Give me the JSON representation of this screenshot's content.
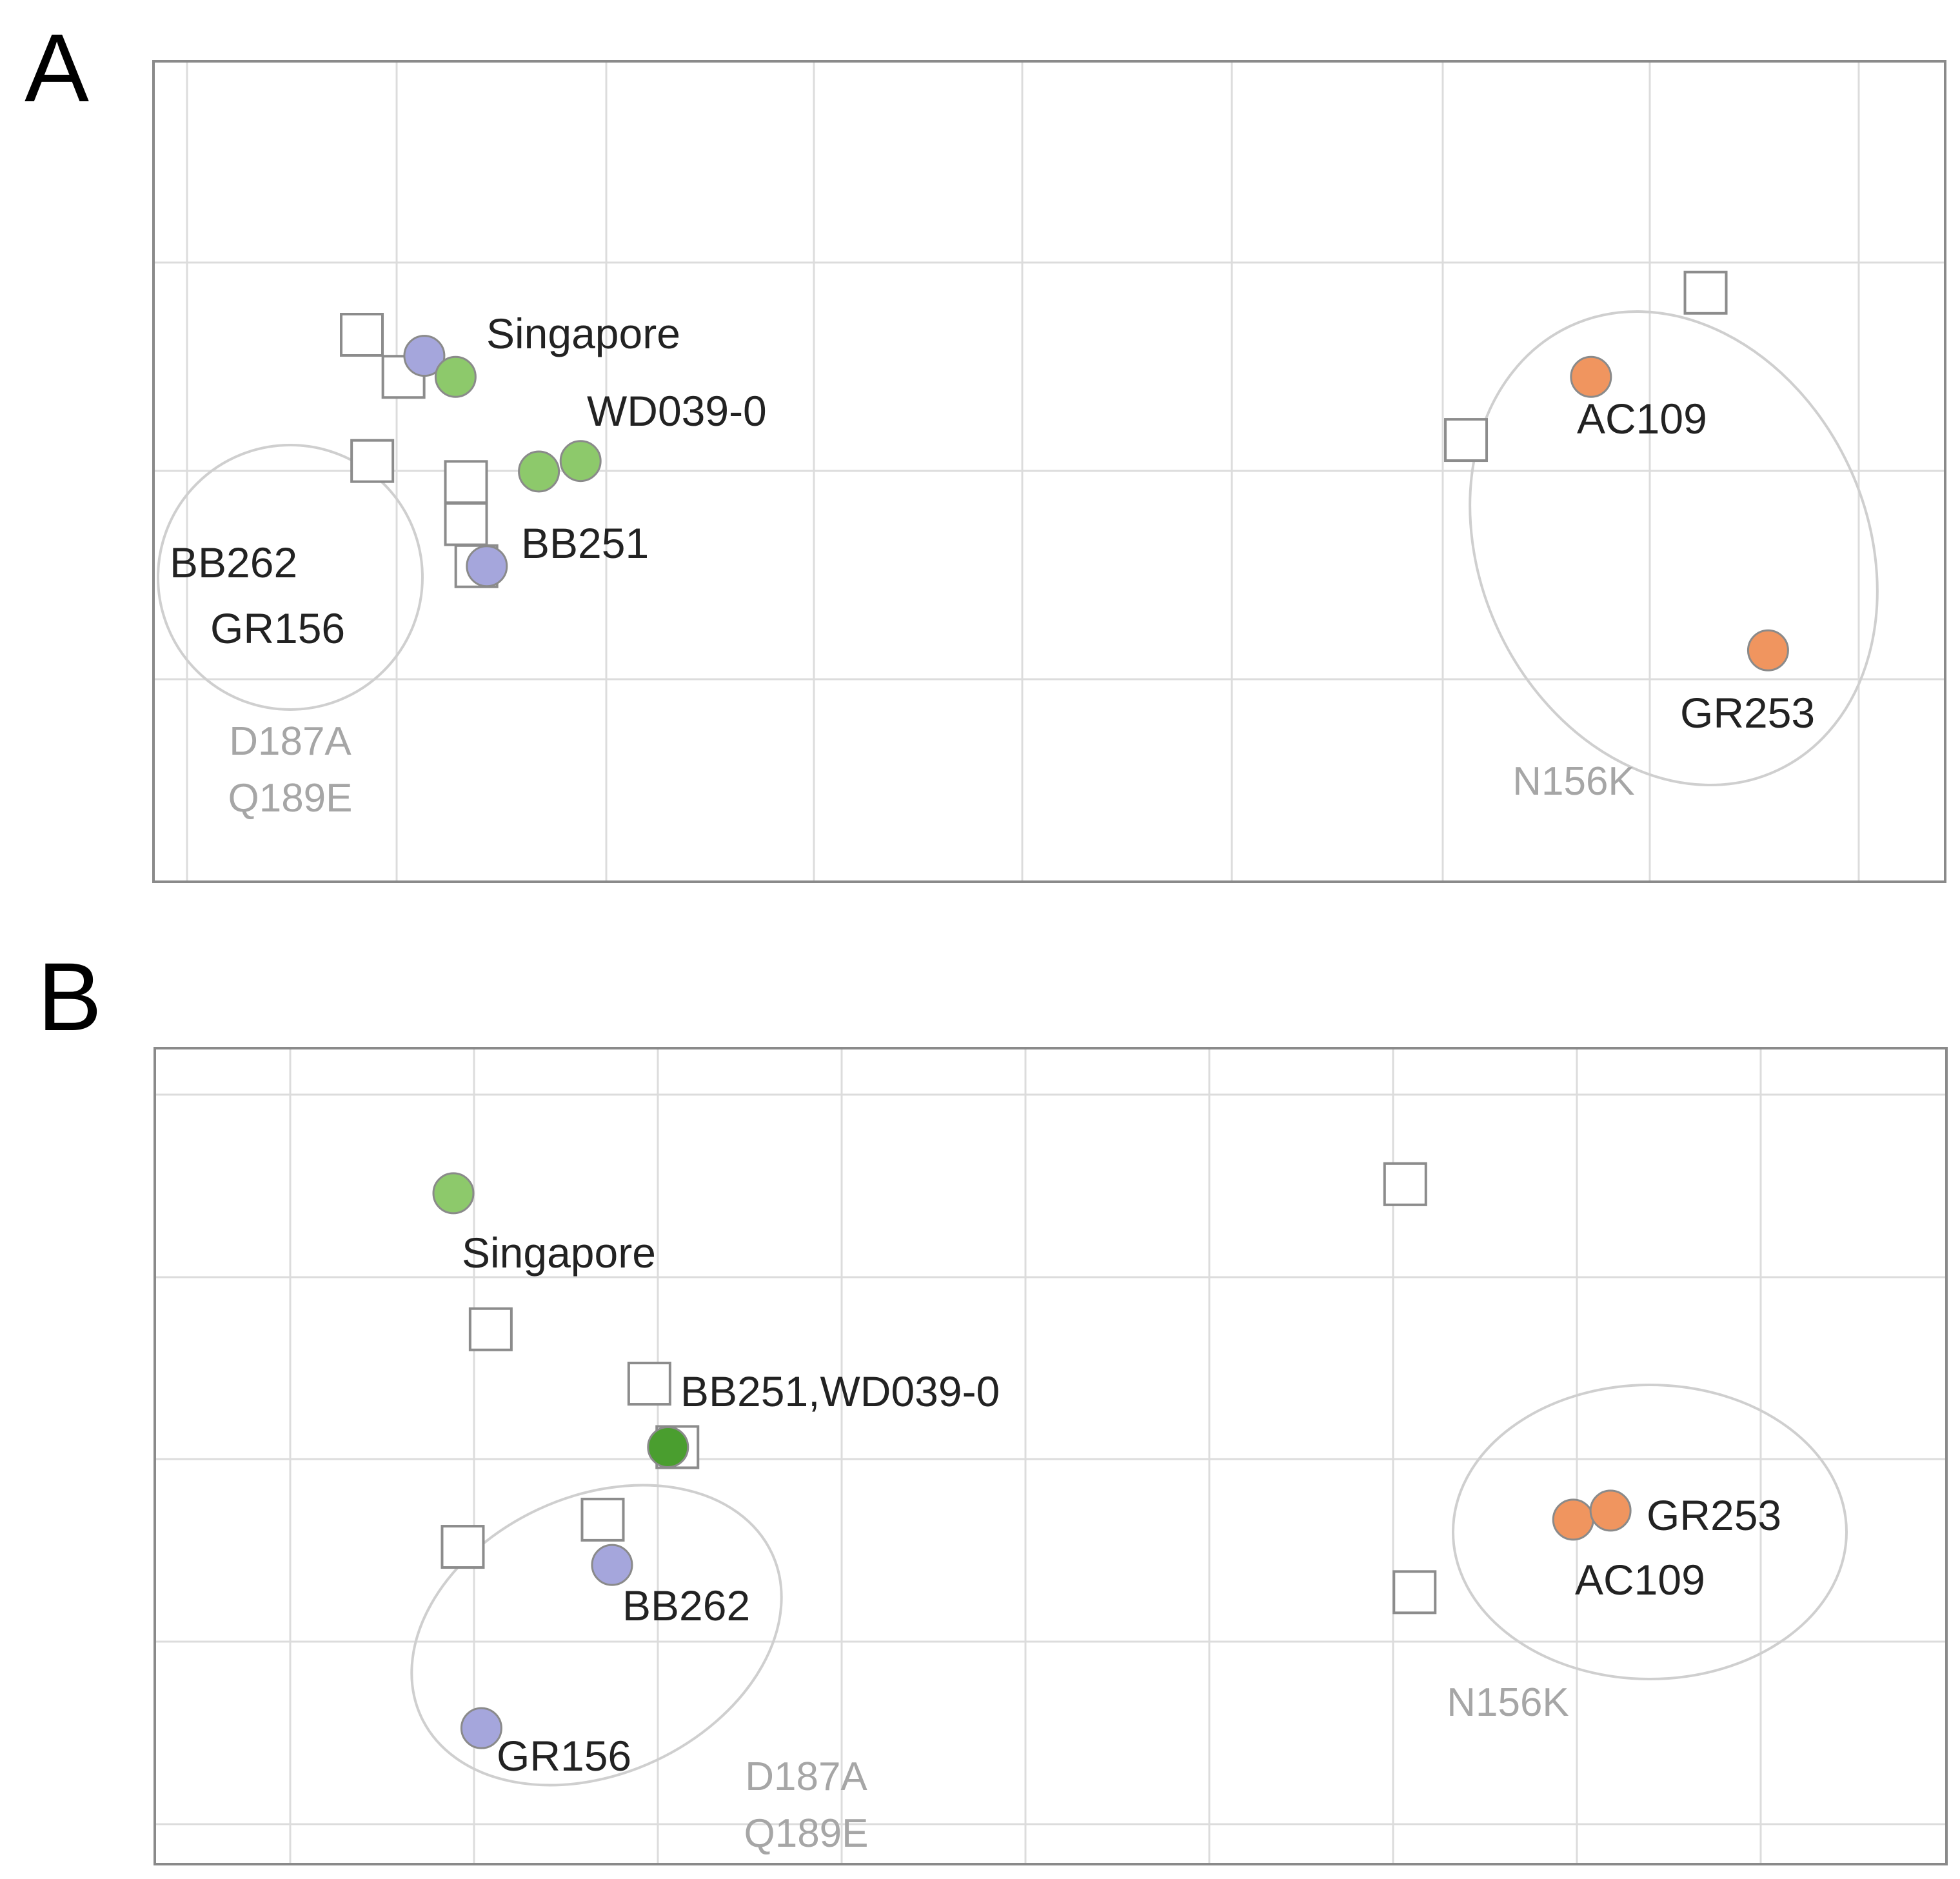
{
  "chart_data": [
    {
      "panel": "A",
      "type": "scatter",
      "title": "",
      "xlabel": "",
      "ylabel": "",
      "xlim": [
        0,
        8.6
      ],
      "ylim": [
        0,
        3.9
      ],
      "grid": true,
      "colors": {
        "green": "#8dc96b",
        "dark_green": "#4a9e2f",
        "purple": "#a5a6dc",
        "orange": "#f0955f"
      },
      "points": [
        {
          "x": 1.3,
          "y": 2.5,
          "color": "purple"
        },
        {
          "x": 1.6,
          "y": 1.5,
          "color": "purple"
        },
        {
          "x": 1.45,
          "y": 2.4,
          "color": "green"
        },
        {
          "x": 1.85,
          "y": 1.95,
          "color": "green"
        },
        {
          "x": 2.05,
          "y": 2.0,
          "color": "green"
        },
        {
          "x": 6.9,
          "y": 2.4,
          "color": "orange"
        },
        {
          "x": 7.75,
          "y": 1.1,
          "color": "orange"
        }
      ],
      "squares": [
        {
          "x": 1.05,
          "y": 2.0
        },
        {
          "x": 1.0,
          "y": 2.6
        },
        {
          "x": 1.2,
          "y": 2.4
        },
        {
          "x": 1.5,
          "y": 1.9
        },
        {
          "x": 1.5,
          "y": 1.7
        },
        {
          "x": 1.55,
          "y": 1.5
        },
        {
          "x": 6.3,
          "y": 2.1
        },
        {
          "x": 7.45,
          "y": 2.8
        }
      ],
      "labels": [
        {
          "text": "Singapore"
        },
        {
          "text": "WD039-0"
        },
        {
          "text": "BB251"
        },
        {
          "text": "BB262"
        },
        {
          "text": "GR156"
        },
        {
          "text": "AC109"
        },
        {
          "text": "GR253"
        }
      ],
      "groups": [
        {
          "text": [
            "D187A",
            "Q189E"
          ]
        },
        {
          "text": [
            "N156K"
          ]
        }
      ]
    },
    {
      "panel": "B",
      "type": "scatter",
      "title": "",
      "xlabel": "",
      "ylabel": "",
      "xlim": [
        0,
        9.6
      ],
      "ylim": [
        0,
        4.5
      ],
      "grid": true,
      "colors": {
        "green": "#8dc96b",
        "dark_green": "#4a9e2f",
        "purple": "#a5a6dc",
        "orange": "#f0955f"
      },
      "points": [
        {
          "x": 1.6,
          "y": 3.7,
          "color": "green"
        },
        {
          "x": 2.75,
          "y": 2.3,
          "color": "dark_green"
        },
        {
          "x": 2.45,
          "y": 1.65,
          "color": "purple"
        },
        {
          "x": 1.75,
          "y": 0.75,
          "color": "purple"
        },
        {
          "x": 7.6,
          "y": 1.9,
          "color": "orange"
        },
        {
          "x": 7.8,
          "y": 1.95,
          "color": "orange"
        }
      ],
      "squares": [
        {
          "x": 1.8,
          "y": 2.95
        },
        {
          "x": 2.65,
          "y": 2.65
        },
        {
          "x": 2.8,
          "y": 2.3
        },
        {
          "x": 2.4,
          "y": 1.9
        },
        {
          "x": 1.65,
          "y": 1.75
        },
        {
          "x": 6.7,
          "y": 3.75
        },
        {
          "x": 6.75,
          "y": 1.5
        }
      ],
      "labels": [
        {
          "text": "Singapore"
        },
        {
          "text": "BB251,WD039-0"
        },
        {
          "text": "BB262"
        },
        {
          "text": "GR156"
        },
        {
          "text": "GR253"
        },
        {
          "text": "AC109"
        }
      ],
      "groups": [
        {
          "text": [
            "D187A",
            "Q189E"
          ]
        },
        {
          "text": [
            "N156K"
          ]
        }
      ]
    }
  ],
  "panel_letters": {
    "a": "A",
    "b": "B"
  }
}
